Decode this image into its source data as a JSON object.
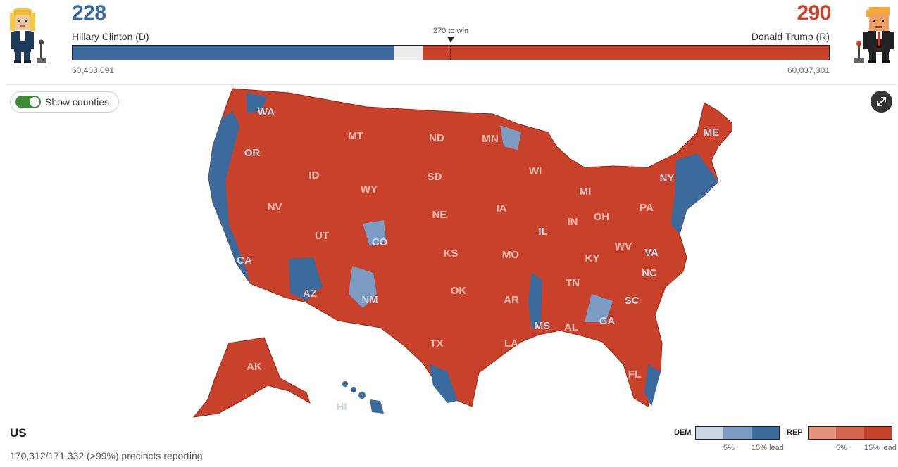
{
  "header": {
    "dem": {
      "electoral_votes": "228",
      "candidate": "Hillary Clinton (D)",
      "popular_vote": "60,403,091",
      "color": "#3b6a9c"
    },
    "rep": {
      "electoral_votes": "290",
      "candidate": "Donald Trump (R)",
      "popular_vote": "60,037,301",
      "color": "#c8412b"
    },
    "win_threshold_label": "270 to win",
    "bar": {
      "total": 538,
      "dem": 228,
      "rep": 290,
      "win": 270
    }
  },
  "controls": {
    "toggle_label": "Show counties",
    "toggle_on": true,
    "expand_icon": "expand-arrows-icon"
  },
  "map": {
    "state_labels": [
      "WA",
      "MT",
      "ND",
      "MN",
      "ME",
      "OR",
      "ID",
      "SD",
      "WI",
      "NY",
      "WY",
      "MI",
      "IA",
      "PA",
      "NV",
      "NE",
      "IN",
      "OH",
      "UT",
      "IL",
      "CO",
      "KS",
      "MO",
      "KY",
      "WV",
      "VA",
      "CA",
      "NC",
      "OK",
      "TN",
      "AR",
      "AZ",
      "NM",
      "SC",
      "GA",
      "MS",
      "AL",
      "TX",
      "LA",
      "FL",
      "AK",
      "HI"
    ]
  },
  "footer": {
    "region": "US",
    "precincts": "170,312/171,332 (>99%) precincts reporting",
    "legend": {
      "dem_label": "DEM",
      "rep_label": "REP",
      "dem_colors": [
        "#c9d6e6",
        "#7d9cc3",
        "#3b6a9c"
      ],
      "rep_colors": [
        "#e5927f",
        "#d6664f",
        "#c8412b"
      ],
      "tick_5": "5%",
      "tick_15": "15% lead"
    }
  }
}
